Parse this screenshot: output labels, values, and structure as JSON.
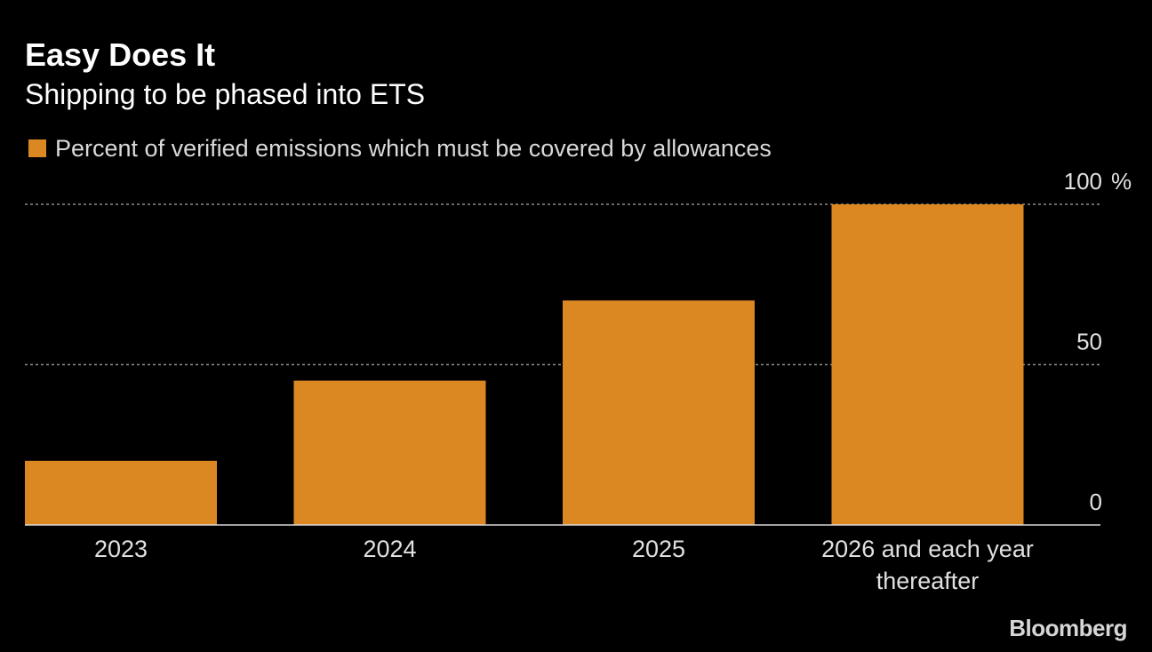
{
  "header": {
    "title": "Easy Does It",
    "subtitle": "Shipping to be phased into ETS"
  },
  "legend": {
    "label": "Percent of verified emissions which must be covered by allowances"
  },
  "colors": {
    "background": "#000000",
    "bar": "#db8823",
    "gridline": "#8c8c8c",
    "baseline": "#d9d9d9",
    "tick_text": "#e0e0e0"
  },
  "chart_data": {
    "type": "bar",
    "title": "Easy Does It",
    "subtitle": "Shipping to be phased into ETS",
    "categories": [
      [
        "2023"
      ],
      [
        "2024"
      ],
      [
        "2025"
      ],
      [
        "2026 and each year",
        "thereafter"
      ]
    ],
    "series": [
      {
        "name": "Percent of verified emissions which must be covered by allowances",
        "values": [
          20,
          45,
          70,
          100
        ]
      }
    ],
    "ylim": [
      0,
      100
    ],
    "yticks": [
      {
        "value": 100,
        "label": "100"
      },
      {
        "value": 50,
        "label": "50"
      },
      {
        "value": 0,
        "label": "0"
      }
    ],
    "yunit": "%",
    "xlabel": "",
    "ylabel": "",
    "grid": true,
    "legend_position": "top-left"
  },
  "footer": {
    "brand": "Bloomberg"
  }
}
